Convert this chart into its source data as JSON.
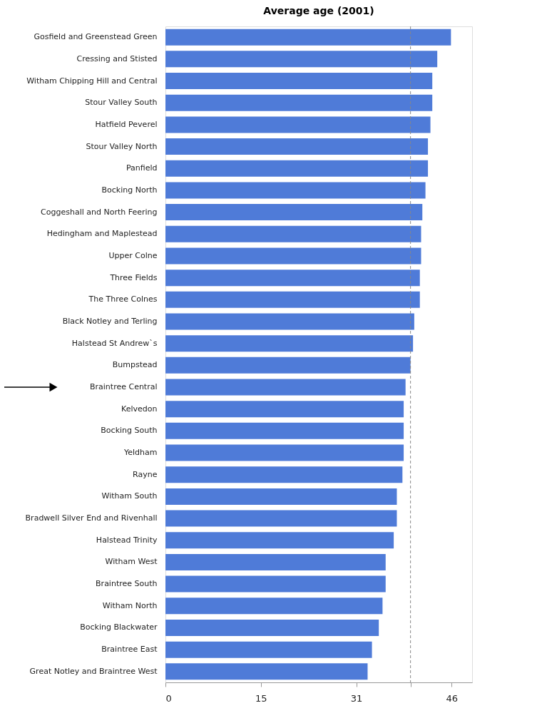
{
  "chart_data": {
    "type": "bar",
    "orientation": "horizontal",
    "title": "Average age (2001)",
    "categories": [
      "Gosfield and Greenstead Green",
      "Cressing and Stisted",
      "Witham Chipping Hill and Central",
      "Stour Valley South",
      "Hatfield Peverel",
      "Stour Valley North",
      "Panfield",
      "Bocking North",
      "Coggeshall and North Feering",
      "Hedingham and Maplestead",
      "Upper Colne",
      "Three Fields",
      "The Three Colnes",
      "Black Notley and Terling",
      "Halstead St Andrew`s",
      "Bumpstead",
      "Braintree Central",
      "Kelvedon",
      "Bocking South",
      "Yeldham",
      "Rayne",
      "Witham South",
      "Bradwell Silver End and Rivenhall",
      "Halstead Trinity",
      "Witham West",
      "Braintree South",
      "Witham North",
      "Bocking Blackwater",
      "Braintree East",
      "Great Notley and Braintree West"
    ],
    "values": [
      45.9,
      43.7,
      42.9,
      42.9,
      42.6,
      42.2,
      42.2,
      41.8,
      41.3,
      41.1,
      41.1,
      40.9,
      40.9,
      40.0,
      39.8,
      39.4,
      38.6,
      38.3,
      38.3,
      38.3,
      38.1,
      37.2,
      37.2,
      36.7,
      35.4,
      35.4,
      34.9,
      34.3,
      33.2,
      32.5
    ],
    "color": "#4f7bd8",
    "xlim": [
      0,
      49.3
    ],
    "xticks": [
      0,
      {
        "value": 15.33,
        "label": "15"
      },
      {
        "value": 30.67,
        "label": "31"
      },
      {
        "value": 39.4,
        "label": null
      },
      46
    ],
    "ref_lines": [
      {
        "axis": "x",
        "value": 39.4,
        "color": "#888888",
        "line_style": "dashed"
      }
    ],
    "grid": false
  }
}
